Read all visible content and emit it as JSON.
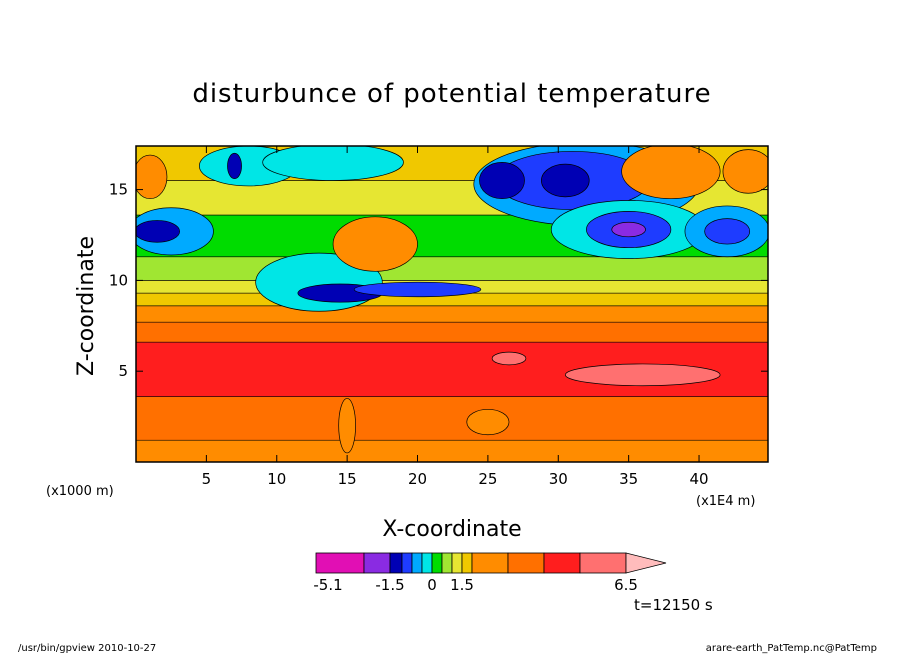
{
  "chart_data": {
    "type": "heatmap",
    "title": "disturbunce of potential temperature",
    "xlabel": "X-coordinate",
    "ylabel": "Z-coordinate",
    "x_unit_left": "(x1000 m)",
    "x_unit_right": "(x1E4 m)",
    "x_ticks": [
      5,
      10,
      15,
      20,
      25,
      30,
      35,
      40
    ],
    "y_ticks": [
      5,
      10,
      15
    ],
    "xlim": [
      0,
      44.9
    ],
    "ylim": [
      0,
      17.4
    ],
    "colorbar": {
      "labels": [
        "-5.1",
        "-1.5",
        "0",
        "1.5",
        "6.5"
      ],
      "colors": [
        "#e10fb4",
        "#8a2be2",
        "#0000b4",
        "#1e3cff",
        "#00aaff",
        "#00e6e6",
        "#00dc00",
        "#a0e632",
        "#e6e632",
        "#f0c800",
        "#ff8c00",
        "#ff7000",
        "#ff1e1e",
        "#ff7070",
        "#ffbcbc"
      ]
    },
    "time_label": "t=12150 s",
    "layers": [
      {
        "z": [
          0,
          1.2
        ],
        "color": "#ff8c00"
      },
      {
        "z": [
          1.2,
          3.6
        ],
        "color": "#ff7000"
      },
      {
        "z": [
          3.6,
          6.6
        ],
        "color": "#ff1e1e"
      },
      {
        "z": [
          6.6,
          7.7
        ],
        "color": "#ff7000"
      },
      {
        "z": [
          7.7,
          8.6
        ],
        "color": "#ff8c00"
      },
      {
        "z": [
          8.6,
          9.3
        ],
        "color": "#f0c800"
      },
      {
        "z": [
          9.3,
          10.0
        ],
        "color": "#e6e632"
      },
      {
        "z": [
          10.0,
          11.3
        ],
        "color": "#a0e632"
      },
      {
        "z": [
          11.3,
          13.6
        ],
        "color": "#00dc00"
      },
      {
        "z": [
          13.6,
          15.5
        ],
        "color": "#e6e632"
      },
      {
        "z": [
          15.5,
          17.4
        ],
        "color": "#f0c800"
      }
    ],
    "blobs": [
      {
        "x": 2.5,
        "z": 12.7,
        "rx": 3.0,
        "rz": 1.3,
        "color": "#00aaff"
      },
      {
        "x": 1.5,
        "z": 12.7,
        "rx": 1.6,
        "rz": 0.6,
        "color": "#0000b4"
      },
      {
        "x": 13,
        "z": 9.9,
        "rx": 4.5,
        "rz": 1.6,
        "color": "#00e6e6"
      },
      {
        "x": 14.5,
        "z": 9.3,
        "rx": 3.0,
        "rz": 0.5,
        "color": "#0000b4"
      },
      {
        "x": 20,
        "z": 9.5,
        "rx": 4.5,
        "rz": 0.4,
        "color": "#1e3cff"
      },
      {
        "x": 17,
        "z": 12.0,
        "rx": 3.0,
        "rz": 1.5,
        "color": "#ff8c00"
      },
      {
        "x": 8,
        "z": 16.3,
        "rx": 3.5,
        "rz": 1.1,
        "color": "#00e6e6"
      },
      {
        "x": 7,
        "z": 16.3,
        "rx": 0.5,
        "rz": 0.7,
        "color": "#0000b4"
      },
      {
        "x": 14,
        "z": 16.5,
        "rx": 5.0,
        "rz": 1.0,
        "color": "#00e6e6"
      },
      {
        "x": 32,
        "z": 15.3,
        "rx": 8.0,
        "rz": 2.3,
        "color": "#00aaff"
      },
      {
        "x": 31,
        "z": 15.5,
        "rx": 5.5,
        "rz": 1.6,
        "color": "#1e3cff"
      },
      {
        "x": 26,
        "z": 15.5,
        "rx": 1.6,
        "rz": 1.0,
        "color": "#0000b4"
      },
      {
        "x": 30.5,
        "z": 15.5,
        "rx": 1.7,
        "rz": 0.9,
        "color": "#0000b4"
      },
      {
        "x": 35,
        "z": 12.8,
        "rx": 5.5,
        "rz": 1.6,
        "color": "#00e6e6"
      },
      {
        "x": 35,
        "z": 12.8,
        "rx": 3.0,
        "rz": 1.0,
        "color": "#1e3cff"
      },
      {
        "x": 35,
        "z": 12.8,
        "rx": 1.2,
        "rz": 0.4,
        "color": "#8a2be2"
      },
      {
        "x": 42,
        "z": 12.7,
        "rx": 3.0,
        "rz": 1.4,
        "color": "#00aaff"
      },
      {
        "x": 42,
        "z": 12.7,
        "rx": 1.6,
        "rz": 0.7,
        "color": "#1e3cff"
      },
      {
        "x": 38,
        "z": 16.0,
        "rx": 3.5,
        "rz": 1.5,
        "color": "#ff8c00"
      },
      {
        "x": 43.5,
        "z": 16.0,
        "rx": 1.8,
        "rz": 1.2,
        "color": "#ff8c00"
      },
      {
        "x": 1.0,
        "z": 15.7,
        "rx": 1.2,
        "rz": 1.2,
        "color": "#ff8c00"
      },
      {
        "x": 26.5,
        "z": 5.7,
        "rx": 1.2,
        "rz": 0.35,
        "color": "#ff7070"
      },
      {
        "x": 36,
        "z": 4.8,
        "rx": 5.5,
        "rz": 0.6,
        "color": "#ff7070"
      },
      {
        "x": 25,
        "z": 2.2,
        "rx": 1.5,
        "rz": 0.7,
        "color": "#ff8c00"
      },
      {
        "x": 15,
        "z": 2.0,
        "rx": 0.6,
        "rz": 1.5,
        "color": "#ff8c00"
      }
    ]
  },
  "footer": {
    "left": "/usr/bin/gpview   2010-10-27",
    "right": "arare-earth_PatTemp.nc@PatTemp"
  }
}
